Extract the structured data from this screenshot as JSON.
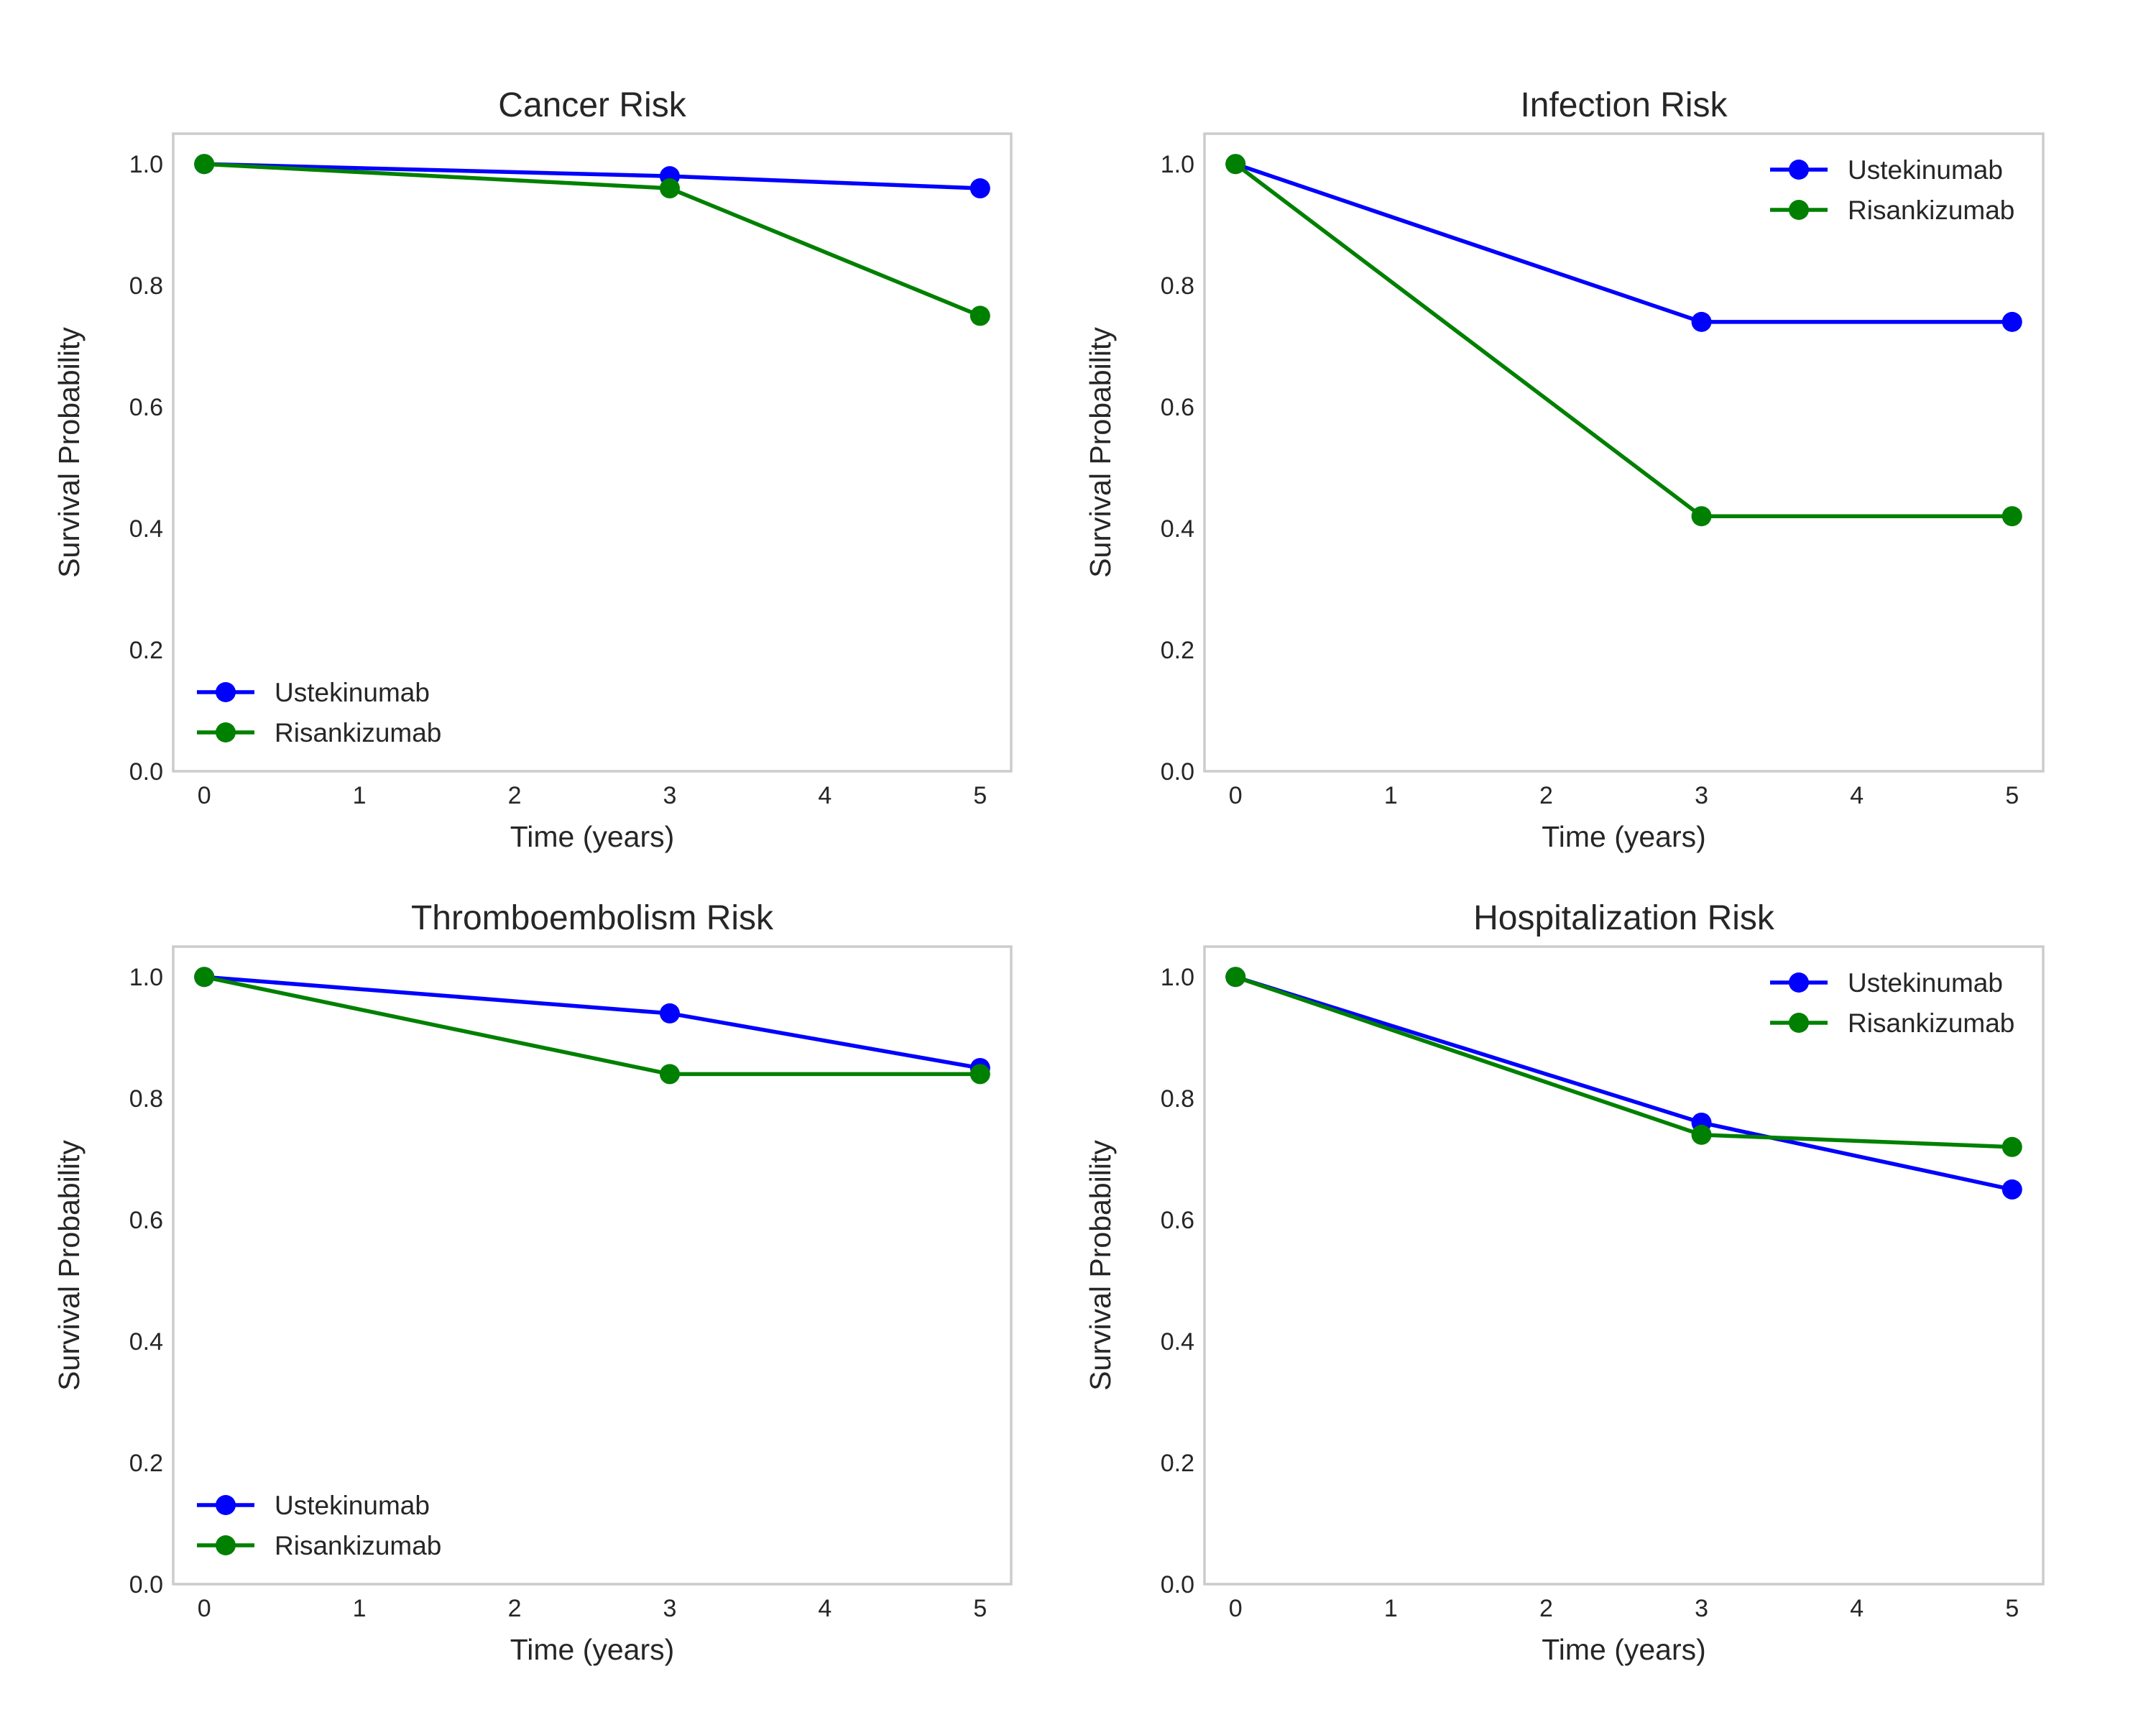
{
  "chart_data": [
    {
      "type": "line",
      "title": "Cancer Risk",
      "xlabel": "Time (years)",
      "ylabel": "Survival Probability",
      "x": [
        0,
        3,
        5
      ],
      "xlim": [
        -0.2,
        5.2
      ],
      "ylim": [
        0,
        1.05
      ],
      "xticks": [
        "0",
        "1",
        "2",
        "3",
        "4",
        "5"
      ],
      "yticks": [
        "0.0",
        "0.2",
        "0.4",
        "0.6",
        "0.8",
        "1.0"
      ],
      "grid": true,
      "legend_position": "lower-left",
      "series": [
        {
          "name": "Ustekinumab",
          "color": "#0000ff",
          "values": [
            1.0,
            0.98,
            0.96
          ]
        },
        {
          "name": "Risankizumab",
          "color": "#008000",
          "values": [
            1.0,
            0.96,
            0.75
          ]
        }
      ]
    },
    {
      "type": "line",
      "title": "Infection Risk",
      "xlabel": "Time (years)",
      "ylabel": "Survival Probability",
      "x": [
        0,
        3,
        5
      ],
      "xlim": [
        -0.2,
        5.2
      ],
      "ylim": [
        0,
        1.05
      ],
      "xticks": [
        "0",
        "1",
        "2",
        "3",
        "4",
        "5"
      ],
      "yticks": [
        "0.0",
        "0.2",
        "0.4",
        "0.6",
        "0.8",
        "1.0"
      ],
      "grid": true,
      "legend_position": "upper-right",
      "series": [
        {
          "name": "Ustekinumab",
          "color": "#0000ff",
          "values": [
            1.0,
            0.74,
            0.74
          ]
        },
        {
          "name": "Risankizumab",
          "color": "#008000",
          "values": [
            1.0,
            0.42,
            0.42
          ]
        }
      ]
    },
    {
      "type": "line",
      "title": "Thromboembolism Risk",
      "xlabel": "Time (years)",
      "ylabel": "Survival Probability",
      "x": [
        0,
        3,
        5
      ],
      "xlim": [
        -0.2,
        5.2
      ],
      "ylim": [
        0,
        1.05
      ],
      "xticks": [
        "0",
        "1",
        "2",
        "3",
        "4",
        "5"
      ],
      "yticks": [
        "0.0",
        "0.2",
        "0.4",
        "0.6",
        "0.8",
        "1.0"
      ],
      "grid": true,
      "legend_position": "lower-left",
      "series": [
        {
          "name": "Ustekinumab",
          "color": "#0000ff",
          "values": [
            1.0,
            0.94,
            0.85
          ]
        },
        {
          "name": "Risankizumab",
          "color": "#008000",
          "values": [
            1.0,
            0.84,
            0.84
          ]
        }
      ]
    },
    {
      "type": "line",
      "title": "Hospitalization Risk",
      "xlabel": "Time (years)",
      "ylabel": "Survival Probability",
      "x": [
        0,
        3,
        5
      ],
      "xlim": [
        -0.2,
        5.2
      ],
      "ylim": [
        0,
        1.05
      ],
      "xticks": [
        "0",
        "1",
        "2",
        "3",
        "4",
        "5"
      ],
      "yticks": [
        "0.0",
        "0.2",
        "0.4",
        "0.6",
        "0.8",
        "1.0"
      ],
      "grid": true,
      "legend_position": "upper-right",
      "series": [
        {
          "name": "Ustekinumab",
          "color": "#0000ff",
          "values": [
            1.0,
            0.76,
            0.65
          ]
        },
        {
          "name": "Risankizumab",
          "color": "#008000",
          "values": [
            1.0,
            0.74,
            0.72
          ]
        }
      ]
    }
  ]
}
